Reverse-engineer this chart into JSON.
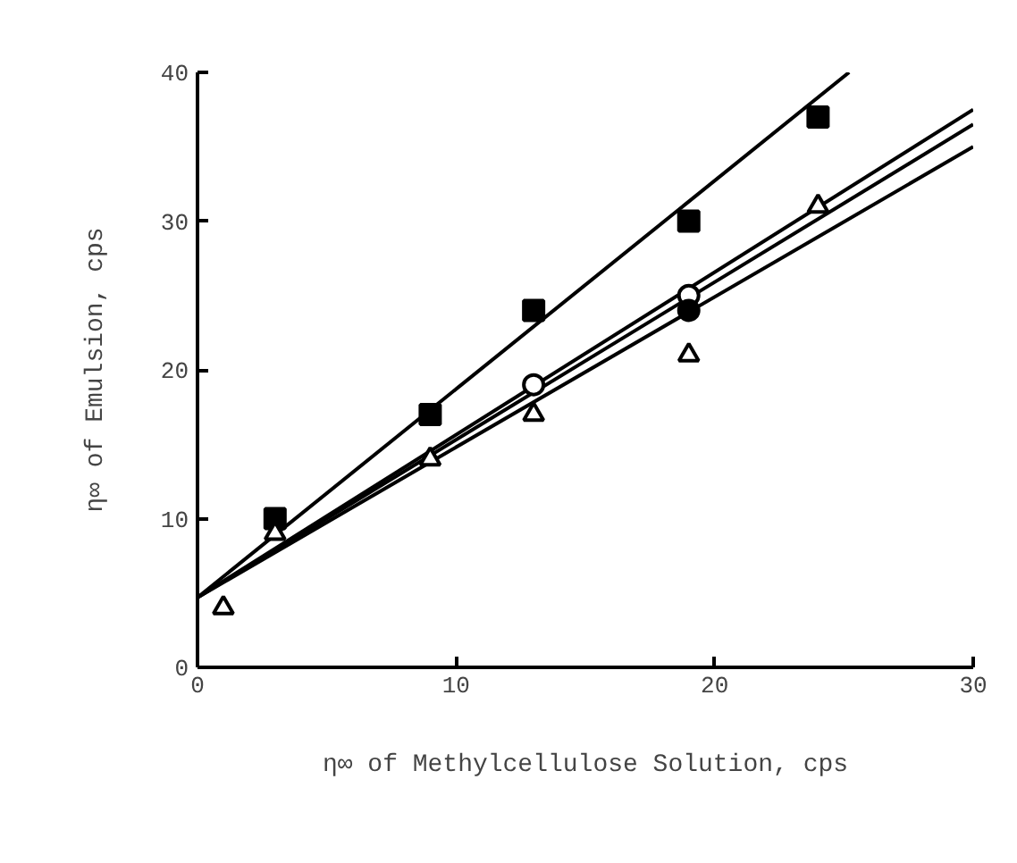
{
  "chart_data": {
    "type": "scatter",
    "xlabel": "η∞ of Methylcellulose Solution, cps",
    "ylabel": "η∞ of Emulsion, cps",
    "xlim": [
      0,
      30
    ],
    "ylim": [
      0,
      40
    ],
    "xticks": [
      0,
      10,
      20,
      30
    ],
    "yticks": [
      0,
      10,
      20,
      30,
      40
    ],
    "grid": false,
    "series": [
      {
        "type": "line",
        "color": "#000000",
        "x": [
          0,
          25.2
        ],
        "values": [
          4.7,
          40
        ],
        "marker": "none"
      },
      {
        "type": "line",
        "color": "#000000",
        "x": [
          0,
          30
        ],
        "values": [
          4.7,
          37.5
        ],
        "marker": "none"
      },
      {
        "type": "line",
        "color": "#000000",
        "x": [
          0,
          30
        ],
        "values": [
          4.7,
          36.5
        ],
        "marker": "none"
      },
      {
        "type": "line",
        "color": "#000000",
        "x": [
          0,
          30
        ],
        "values": [
          4.7,
          35
        ],
        "marker": "none"
      },
      {
        "color": "#000000",
        "x": [
          3,
          9,
          13,
          19,
          24
        ],
        "values": [
          10,
          17,
          24,
          30,
          37
        ],
        "marker": "square"
      },
      {
        "color": "#ffffff",
        "x": [
          13,
          19
        ],
        "values": [
          19,
          25
        ],
        "marker": "circle"
      },
      {
        "color": "#000000",
        "x": [
          19
        ],
        "values": [
          24
        ],
        "marker": "circle"
      },
      {
        "color": "#ffffff",
        "x": [
          1,
          3,
          9,
          13,
          19,
          24
        ],
        "values": [
          4,
          9,
          14,
          17,
          21,
          31
        ],
        "marker": "triangle"
      }
    ]
  }
}
